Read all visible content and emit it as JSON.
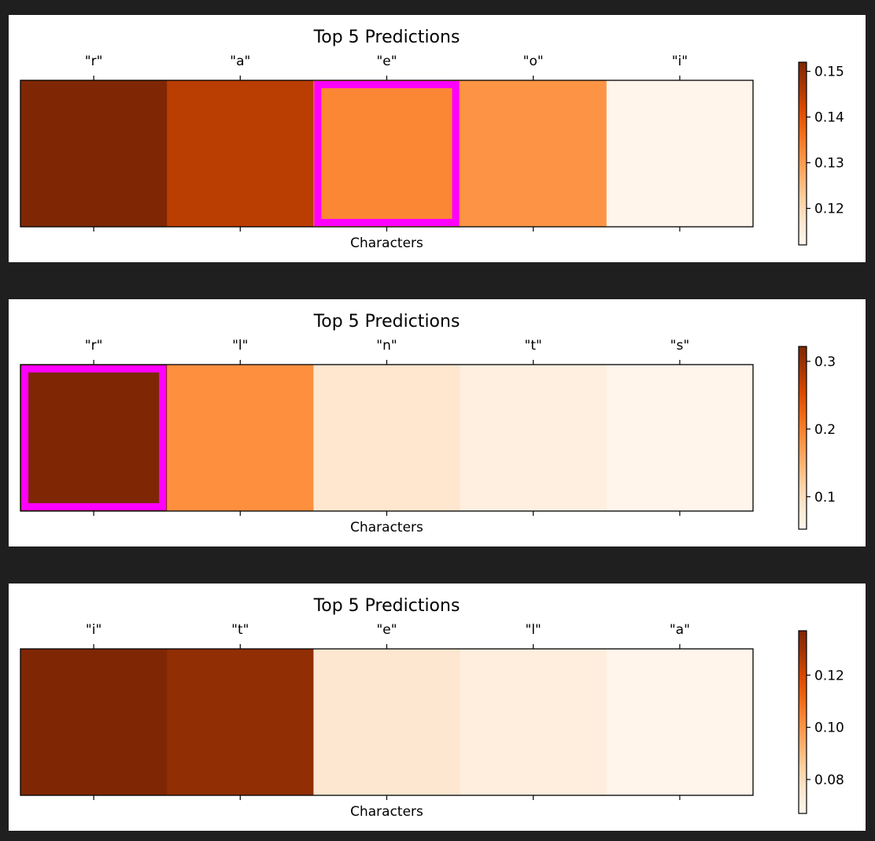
{
  "chart_data": [
    {
      "type": "heatmap",
      "title": "Top 5 Predictions",
      "xlabel": "Characters",
      "categories": [
        "\"r\"",
        "\"a\"",
        "\"e\"",
        "\"o\"",
        "\"i\""
      ],
      "values": [
        0.152,
        0.145,
        0.133,
        0.131,
        0.112
      ],
      "highlight_index": 2,
      "colormap": "Oranges",
      "colorbar": {
        "range": [
          0.112,
          0.152
        ],
        "ticks": [
          0.12,
          0.13,
          0.14,
          0.15
        ],
        "tick_labels": [
          "0.12",
          "0.13",
          "0.14",
          "0.15"
        ]
      },
      "grid": false
    },
    {
      "type": "heatmap",
      "title": "Top 5 Predictions",
      "xlabel": "Characters",
      "categories": [
        "\"r\"",
        "\"l\"",
        "\"n\"",
        "\"t\"",
        "\"s\""
      ],
      "values": [
        0.322,
        0.185,
        0.085,
        0.065,
        0.052
      ],
      "highlight_index": 0,
      "colormap": "Oranges",
      "colorbar": {
        "range": [
          0.052,
          0.322
        ],
        "ticks": [
          0.1,
          0.2,
          0.3
        ],
        "tick_labels": [
          "0.1",
          "0.2",
          "0.3"
        ]
      },
      "grid": false
    },
    {
      "type": "heatmap",
      "title": "Top 5 Predictions",
      "xlabel": "Characters",
      "categories": [
        "\"i\"",
        "\"t\"",
        "\"e\"",
        "\"l\"",
        "\"a\""
      ],
      "values": [
        0.137,
        0.133,
        0.075,
        0.071,
        0.067
      ],
      "highlight_index": null,
      "colormap": "Oranges",
      "colorbar": {
        "range": [
          0.067,
          0.137
        ],
        "ticks": [
          0.08,
          0.1,
          0.12
        ],
        "tick_labels": [
          "0.08",
          "0.10",
          "0.12"
        ]
      },
      "grid": false
    }
  ],
  "colors": {
    "background": "#1f1f1f",
    "panel": "#ffffff",
    "highlight": "#ff00ff"
  }
}
